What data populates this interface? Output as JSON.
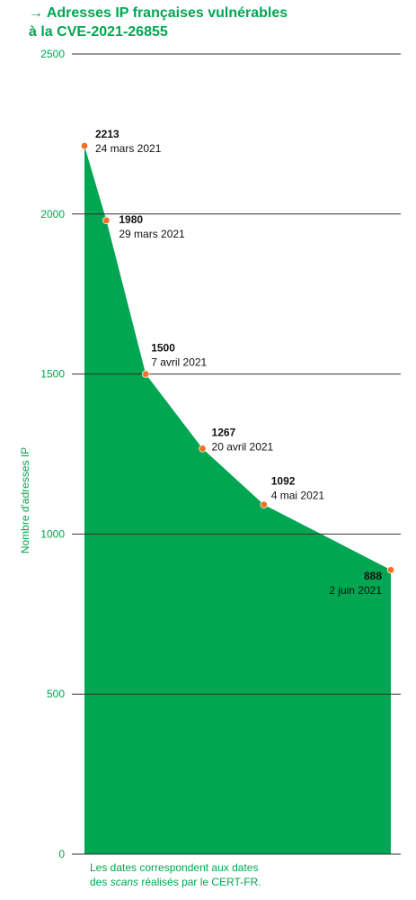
{
  "chart_data": {
    "type": "area",
    "title_lines": [
      "→ Adresses IP françaises vulnérables",
      "à la CVE-2021-26855"
    ],
    "ylabel": "Nombre d'adresses IP",
    "ylim": [
      0,
      2500
    ],
    "yticks": [
      0,
      500,
      1000,
      1500,
      2000,
      2500
    ],
    "grid": true,
    "x_dates": [
      "2021-03-24",
      "2021-03-29",
      "2021-04-07",
      "2021-04-20",
      "2021-05-04",
      "2021-06-02"
    ],
    "values": [
      2213,
      1980,
      1500,
      1267,
      1092,
      888
    ],
    "point_labels": [
      {
        "value": "2213",
        "date": "24 mars 2021"
      },
      {
        "value": "1980",
        "date": "29 mars 2021"
      },
      {
        "value": "1500",
        "date": "7 avril 2021"
      },
      {
        "value": "1267",
        "date": "20 avril 2021"
      },
      {
        "value": "1092",
        "date": "4 mai 2021"
      },
      {
        "value": "888",
        "date": "2 juin 2021"
      }
    ],
    "colors": {
      "area": "#00a651",
      "marker": "#f37021",
      "text": "#00a651",
      "grid": "#333333"
    }
  },
  "note": {
    "before": "Les dates correspondent aux dates",
    "line2_prefix": "des ",
    "line2_emph": "scans",
    "line2_suffix": " réalisés par le CERT-FR."
  }
}
